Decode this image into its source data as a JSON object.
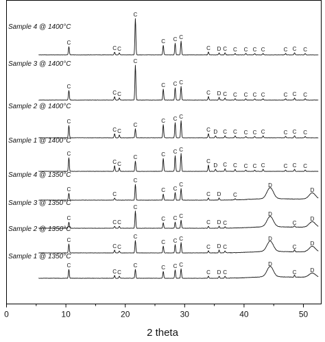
{
  "chart_data": {
    "type": "line",
    "title": "",
    "xlabel": "2 theta",
    "ylabel": "",
    "xlim": [
      0,
      53
    ],
    "xticks": [
      0,
      10,
      20,
      30,
      40,
      50
    ],
    "grid": false,
    "legend": "none",
    "series": [
      {
        "name": "Sample 4 @ 1400°C",
        "amorphous_hump": false,
        "peaks": [
          {
            "x": 10.5,
            "h": 12,
            "label": "C"
          },
          {
            "x": 18.2,
            "h": 4,
            "label": "C"
          },
          {
            "x": 19.0,
            "h": 3,
            "label": "C"
          },
          {
            "x": 21.7,
            "h": 53,
            "label": "C"
          },
          {
            "x": 26.4,
            "h": 14,
            "label": "C"
          },
          {
            "x": 28.4,
            "h": 17,
            "label": "C"
          },
          {
            "x": 29.4,
            "h": 20,
            "label": "C"
          },
          {
            "x": 34.0,
            "h": 4,
            "label": "C"
          },
          {
            "x": 35.8,
            "h": 3,
            "label": "D"
          },
          {
            "x": 36.8,
            "h": 3,
            "label": "C"
          },
          {
            "x": 38.5,
            "h": 2,
            "label": "C"
          },
          {
            "x": 40.3,
            "h": 2,
            "label": "C"
          },
          {
            "x": 41.8,
            "h": 2,
            "label": "C"
          },
          {
            "x": 43.2,
            "h": 2,
            "label": "C"
          },
          {
            "x": 47.0,
            "h": 2,
            "label": "C"
          },
          {
            "x": 48.5,
            "h": 3,
            "label": "C"
          },
          {
            "x": 50.3,
            "h": 2,
            "label": "C"
          }
        ]
      },
      {
        "name": "Sample 3 @ 1400°C",
        "amorphous_hump": false,
        "peaks": [
          {
            "x": 10.5,
            "h": 14,
            "label": "C"
          },
          {
            "x": 18.2,
            "h": 5,
            "label": "C"
          },
          {
            "x": 19.0,
            "h": 3,
            "label": "C"
          },
          {
            "x": 21.7,
            "h": 51,
            "label": "C"
          },
          {
            "x": 26.4,
            "h": 16,
            "label": "C"
          },
          {
            "x": 28.4,
            "h": 18,
            "label": "C"
          },
          {
            "x": 29.4,
            "h": 20,
            "label": "C"
          },
          {
            "x": 34.0,
            "h": 5,
            "label": "C"
          },
          {
            "x": 35.8,
            "h": 4,
            "label": "D"
          },
          {
            "x": 36.8,
            "h": 3,
            "label": "C"
          },
          {
            "x": 38.5,
            "h": 2,
            "label": "C"
          },
          {
            "x": 40.3,
            "h": 2,
            "label": "C"
          },
          {
            "x": 41.8,
            "h": 2,
            "label": "C"
          },
          {
            "x": 43.2,
            "h": 2,
            "label": "C"
          },
          {
            "x": 47.0,
            "h": 2,
            "label": "C"
          },
          {
            "x": 48.5,
            "h": 3,
            "label": "C"
          },
          {
            "x": 50.3,
            "h": 2,
            "label": "C"
          }
        ]
      },
      {
        "name": "Sample 2 @ 1400°C",
        "amorphous_hump": false,
        "peaks": [
          {
            "x": 10.5,
            "h": 18,
            "label": "C"
          },
          {
            "x": 18.2,
            "h": 6,
            "label": "C"
          },
          {
            "x": 19.0,
            "h": 4,
            "label": "C"
          },
          {
            "x": 21.7,
            "h": 13,
            "label": "C"
          },
          {
            "x": 26.4,
            "h": 19,
            "label": "C"
          },
          {
            "x": 28.4,
            "h": 22,
            "label": "C"
          },
          {
            "x": 29.4,
            "h": 25,
            "label": "C"
          },
          {
            "x": 34.0,
            "h": 6,
            "label": "C"
          },
          {
            "x": 35.2,
            "h": 3,
            "label": "D"
          },
          {
            "x": 36.8,
            "h": 3,
            "label": "C"
          },
          {
            "x": 38.5,
            "h": 3,
            "label": "C"
          },
          {
            "x": 40.3,
            "h": 2,
            "label": "C"
          },
          {
            "x": 41.8,
            "h": 2,
            "label": "C"
          },
          {
            "x": 43.2,
            "h": 3,
            "label": "C"
          },
          {
            "x": 47.0,
            "h": 2,
            "label": "C"
          },
          {
            "x": 48.5,
            "h": 3,
            "label": "C"
          },
          {
            "x": 50.3,
            "h": 2,
            "label": "C"
          }
        ]
      },
      {
        "name": "Sample 1 @ 1400°C",
        "amorphous_hump": false,
        "peaks": [
          {
            "x": 10.5,
            "h": 20,
            "label": "C"
          },
          {
            "x": 18.2,
            "h": 8,
            "label": "C"
          },
          {
            "x": 19.0,
            "h": 5,
            "label": "C"
          },
          {
            "x": 21.7,
            "h": 15,
            "label": "C"
          },
          {
            "x": 26.4,
            "h": 19,
            "label": "C"
          },
          {
            "x": 28.4,
            "h": 23,
            "label": "C"
          },
          {
            "x": 29.4,
            "h": 26,
            "label": "C"
          },
          {
            "x": 34.0,
            "h": 9,
            "label": "C"
          },
          {
            "x": 35.2,
            "h": 3,
            "label": "D"
          },
          {
            "x": 36.8,
            "h": 4,
            "label": "C"
          },
          {
            "x": 38.5,
            "h": 3,
            "label": "C"
          },
          {
            "x": 40.3,
            "h": 2,
            "label": "C"
          },
          {
            "x": 41.8,
            "h": 2,
            "label": "C"
          },
          {
            "x": 43.2,
            "h": 3,
            "label": "C"
          },
          {
            "x": 47.0,
            "h": 2,
            "label": "C"
          },
          {
            "x": 48.5,
            "h": 3,
            "label": "C"
          },
          {
            "x": 50.3,
            "h": 2,
            "label": "C"
          }
        ]
      },
      {
        "name": "Sample 4 @ 1350°C",
        "amorphous_hump": true,
        "peaks": [
          {
            "x": 10.5,
            "h": 10,
            "label": "C"
          },
          {
            "x": 18.2,
            "h": 3,
            "label": "C"
          },
          {
            "x": 21.7,
            "h": 23,
            "label": "C"
          },
          {
            "x": 26.4,
            "h": 9,
            "label": "C"
          },
          {
            "x": 28.4,
            "h": 11,
            "label": "C"
          },
          {
            "x": 29.4,
            "h": 17,
            "label": "C"
          },
          {
            "x": 34.0,
            "h": 3,
            "label": "C"
          },
          {
            "x": 35.8,
            "h": 3,
            "label": "D"
          },
          {
            "x": 38.5,
            "h": 2,
            "label": "C"
          },
          {
            "x": 44.4,
            "h": 16,
            "label": "D"
          },
          {
            "x": 51.5,
            "h": 9,
            "label": "D"
          }
        ]
      },
      {
        "name": "Sample 3 @ 1350°C",
        "amorphous_hump": true,
        "peaks": [
          {
            "x": 10.5,
            "h": 9,
            "label": "C"
          },
          {
            "x": 18.2,
            "h": 3,
            "label": "C"
          },
          {
            "x": 19.0,
            "h": 3,
            "label": "C"
          },
          {
            "x": 21.7,
            "h": 25,
            "label": "C"
          },
          {
            "x": 26.4,
            "h": 8,
            "label": "C"
          },
          {
            "x": 28.4,
            "h": 9,
            "label": "C"
          },
          {
            "x": 29.4,
            "h": 12,
            "label": "C"
          },
          {
            "x": 34.0,
            "h": 3,
            "label": "C"
          },
          {
            "x": 35.8,
            "h": 3,
            "label": "D"
          },
          {
            "x": 36.8,
            "h": 2,
            "label": "C"
          },
          {
            "x": 44.4,
            "h": 15,
            "label": "D"
          },
          {
            "x": 48.5,
            "h": 2,
            "label": "C"
          },
          {
            "x": 51.5,
            "h": 8,
            "label": "D"
          }
        ]
      },
      {
        "name": "Sample 2 @ 1350°C",
        "amorphous_hump": true,
        "peaks": [
          {
            "x": 10.5,
            "h": 13,
            "label": "C"
          },
          {
            "x": 18.2,
            "h": 4,
            "label": "C"
          },
          {
            "x": 19.0,
            "h": 3,
            "label": "C"
          },
          {
            "x": 21.7,
            "h": 18,
            "label": "C"
          },
          {
            "x": 26.4,
            "h": 10,
            "label": "C"
          },
          {
            "x": 28.4,
            "h": 12,
            "label": "C"
          },
          {
            "x": 29.4,
            "h": 15,
            "label": "C"
          },
          {
            "x": 34.0,
            "h": 3,
            "label": "C"
          },
          {
            "x": 35.8,
            "h": 4,
            "label": "D"
          },
          {
            "x": 36.8,
            "h": 3,
            "label": "C"
          },
          {
            "x": 44.4,
            "h": 15,
            "label": "D"
          },
          {
            "x": 48.5,
            "h": 3,
            "label": "C"
          },
          {
            "x": 51.5,
            "h": 8,
            "label": "D"
          }
        ]
      },
      {
        "name": "Sample 1 @ 1350°C",
        "amorphous_hump": true,
        "peaks": [
          {
            "x": 10.5,
            "h": 13,
            "label": "C"
          },
          {
            "x": 18.2,
            "h": 4,
            "label": "C"
          },
          {
            "x": 19.0,
            "h": 3,
            "label": "C"
          },
          {
            "x": 21.7,
            "h": 13,
            "label": "C"
          },
          {
            "x": 26.4,
            "h": 10,
            "label": "C"
          },
          {
            "x": 28.4,
            "h": 12,
            "label": "C"
          },
          {
            "x": 29.4,
            "h": 14,
            "label": "C"
          },
          {
            "x": 34.0,
            "h": 3,
            "label": "C"
          },
          {
            "x": 35.8,
            "h": 3,
            "label": "D"
          },
          {
            "x": 36.8,
            "h": 3,
            "label": "C"
          },
          {
            "x": 44.4,
            "h": 15,
            "label": "D"
          },
          {
            "x": 48.5,
            "h": 3,
            "label": "C"
          },
          {
            "x": 51.5,
            "h": 6,
            "label": "D"
          }
        ]
      }
    ]
  }
}
